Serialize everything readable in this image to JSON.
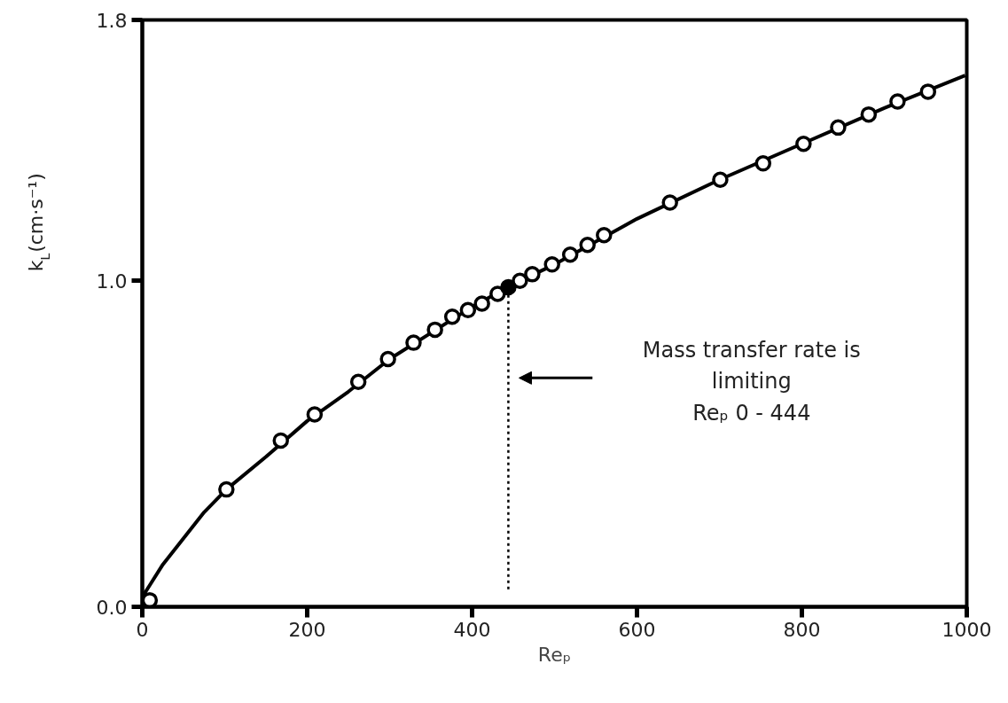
{
  "chart_data": {
    "type": "scatter",
    "xlabel": "Reₚ",
    "ylabel": "k$_{L}$(cm·s⁻¹)",
    "xlim": [
      0,
      1000
    ],
    "xticks": [
      0,
      200,
      400,
      600,
      800,
      1000
    ],
    "ylim": [
      0,
      1.8
    ],
    "yticks": [
      {
        "value": 0,
        "label": "0.0"
      },
      {
        "value": 1,
        "label": "1.0"
      },
      1.8
    ],
    "grid": false,
    "marker": "circle",
    "series": [
      {
        "type": "line",
        "color": "#000000",
        "line_style": "solid",
        "marker": "none",
        "x": [
          0,
          10,
          25,
          50,
          75,
          102,
          150,
          200,
          250,
          300,
          350,
          400,
          450,
          500,
          600,
          700,
          800,
          900,
          998
        ],
        "values": [
          0.03,
          0.07,
          0.13,
          0.21,
          0.29,
          0.36,
          0.46,
          0.57,
          0.66,
          0.76,
          0.84,
          0.92,
          0.99,
          1.05,
          1.19,
          1.31,
          1.42,
          1.53,
          1.63
        ]
      },
      {
        "color": "#ffffff",
        "x": [
          9,
          102,
          168,
          209,
          262,
          298,
          329,
          355,
          376,
          395,
          412,
          431,
          458,
          473,
          497,
          519,
          540,
          560,
          640,
          701,
          753,
          802,
          844,
          881,
          916,
          953
        ],
        "values": [
          0.02,
          0.36,
          0.51,
          0.59,
          0.69,
          0.76,
          0.81,
          0.85,
          0.89,
          0.91,
          0.93,
          0.96,
          1.0,
          1.02,
          1.05,
          1.08,
          1.11,
          1.14,
          1.24,
          1.31,
          1.36,
          1.42,
          1.47,
          1.51,
          1.55,
          1.58
        ]
      },
      {
        "color": "#000000",
        "x": [
          444
        ],
        "values": [
          0.98
        ]
      }
    ],
    "ref_lines": [
      {
        "axis": "x",
        "value": 444,
        "line_style": "dotted",
        "color": "#000000",
        "label": "Mass transfer rate is\nlimiting\nReₚ 0 - 444"
      }
    ]
  }
}
